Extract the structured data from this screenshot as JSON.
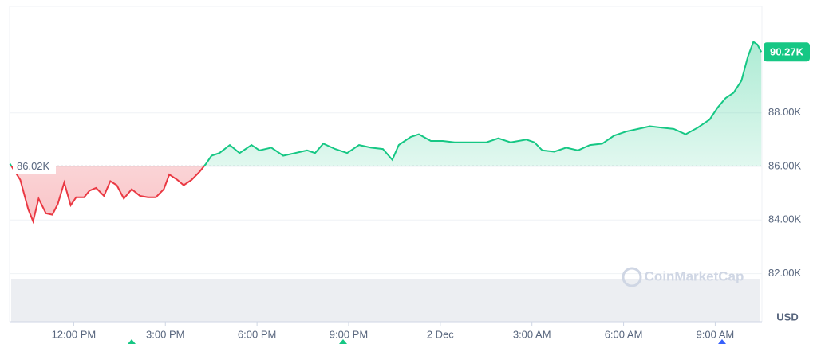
{
  "chart_data": {
    "type": "line",
    "x": [
      9.91,
      10.25,
      10.51,
      10.67,
      10.85,
      11.09,
      11.3,
      11.48,
      11.69,
      11.9,
      12.08,
      12.34,
      12.52,
      12.73,
      12.99,
      13.2,
      13.41,
      13.64,
      13.9,
      14.17,
      14.43,
      14.69,
      14.95,
      15.13,
      15.39,
      15.6,
      15.86,
      16.12,
      16.33,
      16.51,
      16.77,
      17.11,
      17.43,
      17.82,
      18.08,
      18.47,
      18.86,
      19.25,
      19.64,
      19.9,
      20.17,
      20.56,
      20.95,
      21.34,
      21.73,
      22.12,
      22.43,
      22.64,
      23.03,
      23.3,
      23.69,
      24.08,
      24.47,
      24.99,
      25.51,
      25.9,
      26.3,
      26.82,
      27.08,
      27.34,
      27.73,
      28.12,
      28.51,
      28.9,
      29.3,
      29.69,
      30.08,
      30.47,
      30.86,
      31.25,
      31.64,
      32.03,
      32.43,
      32.82,
      33.08,
      33.34,
      33.6,
      33.86,
      34.07,
      34.25,
      34.38,
      34.51
    ],
    "values": [
      86100,
      85500,
      84400,
      83950,
      84800,
      84250,
      84200,
      84600,
      85400,
      84550,
      84850,
      84850,
      85100,
      85200,
      84900,
      85450,
      85300,
      84800,
      85150,
      84900,
      84850,
      84850,
      85150,
      85700,
      85500,
      85300,
      85500,
      85800,
      86100,
      86400,
      86500,
      86800,
      86500,
      86800,
      86600,
      86700,
      86400,
      86500,
      86600,
      86500,
      86850,
      86650,
      86500,
      86800,
      86700,
      86650,
      86250,
      86800,
      87100,
      87200,
      86950,
      86950,
      86900,
      86900,
      86900,
      87050,
      86900,
      87000,
      86900,
      86600,
      86550,
      86700,
      86600,
      86800,
      86850,
      87150,
      87300,
      87400,
      87500,
      87450,
      87400,
      87200,
      87450,
      87750,
      88200,
      88550,
      88750,
      89200,
      90100,
      90650,
      90550,
      90270
    ],
    "up_color": "#16c784",
    "down_color": "#ea3943",
    "reference_price": {
      "value": 86020,
      "label": "86.02K"
    },
    "current_price": {
      "value": 90270,
      "label": "90.27K"
    },
    "xlim": [
      9.9,
      34.53
    ],
    "xticks": [
      {
        "value": 12,
        "label": "12:00 PM"
      },
      {
        "value": 15,
        "label": "3:00 PM"
      },
      {
        "value": 18,
        "label": "6:00 PM"
      },
      {
        "value": 21,
        "label": "9:00 PM"
      },
      {
        "value": 24,
        "label": "2 Dec"
      },
      {
        "value": 27,
        "label": "3:00 AM"
      },
      {
        "value": 30,
        "label": "6:00 AM"
      },
      {
        "value": 33,
        "label": "9:00 AM"
      }
    ],
    "ylim": [
      80205,
      91973
    ],
    "yticks": [
      {
        "value": 82000,
        "label": "82.00K"
      },
      {
        "value": 84000,
        "label": "84.00K"
      },
      {
        "value": 86000,
        "label": "86.00K"
      },
      {
        "value": 88000,
        "label": "88.00K"
      }
    ],
    "y_unit": "USD",
    "watermark": "CoinMarketCap",
    "grid": true
  }
}
